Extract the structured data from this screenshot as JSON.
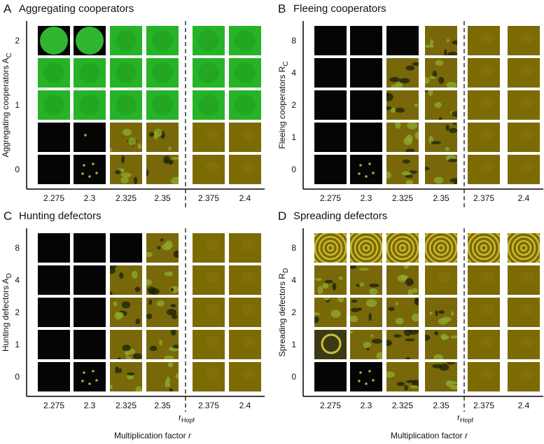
{
  "panels": [
    {
      "letter": "A",
      "title": "Aggregating cooperators",
      "ylabel": "Aggregating cooperators A",
      "ylabel_sub": "C",
      "yticks": [
        "2",
        null,
        "1",
        null,
        "0"
      ],
      "xticks": [
        "2.275",
        "2.3",
        "2.325",
        "2.35",
        "2.375",
        "2.4"
      ]
    },
    {
      "letter": "B",
      "title": "Fleeing cooperators",
      "ylabel": "Fleeing cooperators R",
      "ylabel_sub": "C",
      "yticks": [
        "8",
        "4",
        "2",
        "1",
        "0"
      ],
      "xticks": [
        "2.275",
        "2.3",
        "2.325",
        "2.35",
        "2.375",
        "2.4"
      ]
    },
    {
      "letter": "C",
      "title": "Hunting defectors",
      "ylabel": "Hunting defectors A",
      "ylabel_sub": "D",
      "yticks": [
        "8",
        "4",
        "2",
        "1",
        "0"
      ],
      "xticks": [
        "2.275",
        "2.3",
        "2.325",
        "2.35",
        "2.375",
        "2.4"
      ],
      "marker": "r",
      "marker_sub": "Hopf",
      "xlabel": "Multiplication factor ",
      "xlabel_var": "r"
    },
    {
      "letter": "D",
      "title": "Spreading defectors",
      "ylabel": "Spreading defectors R",
      "ylabel_sub": "D",
      "yticks": [
        "8",
        "4",
        "2",
        "1",
        "0"
      ],
      "xticks": [
        "2.275",
        "2.3",
        "2.325",
        "2.35",
        "2.375",
        "2.4"
      ],
      "marker": "r",
      "marker_sub": "Hopf",
      "xlabel": "Multiplication factor ",
      "xlabel_var": "r"
    }
  ]
}
